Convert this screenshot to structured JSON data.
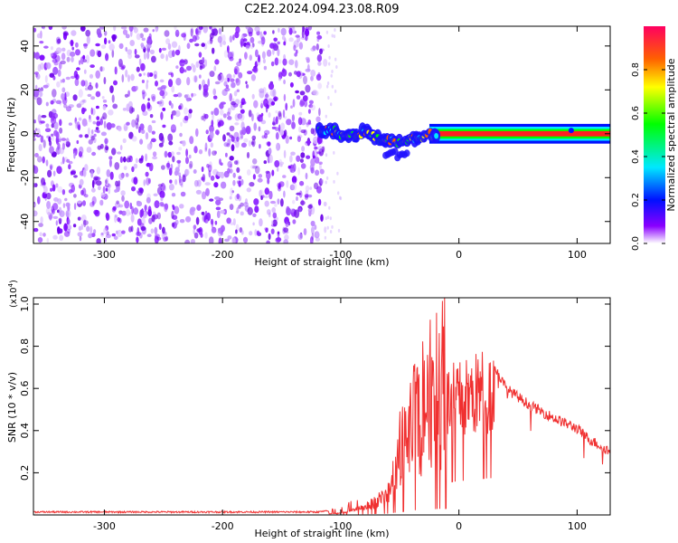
{
  "title": "C2E2.2024.094.23.08.R09",
  "colors": {
    "snr_line": "#f03030",
    "spectrum_dot": "#7a00ff",
    "frame": "#000000"
  },
  "chart_data": [
    {
      "type": "heatmap",
      "title": "C2E2.2024.094.23.08.R09",
      "xlabel": "Height of straight line (km)",
      "ylabel": "Frequency (Hz)",
      "xlim": [
        -360,
        128
      ],
      "ylim": [
        -50,
        49
      ],
      "x_ticks": [
        -300,
        -200,
        -100,
        0,
        100
      ],
      "y_ticks": [
        -40,
        -20,
        0,
        20,
        40
      ],
      "x_tick_labels": [
        "-300",
        "-200",
        "-100",
        "0",
        "100"
      ],
      "y_tick_labels": [
        "-40",
        "-20",
        "0",
        "20",
        "40"
      ],
      "noise_region_x": [
        -360,
        -113
      ],
      "frequency_trace": {
        "x": [
          -120,
          -110,
          -100,
          -90,
          -80,
          -70,
          -60,
          -50,
          -40,
          -30,
          -20,
          -10,
          0,
          10,
          40,
          70,
          100,
          128
        ],
        "y": [
          1,
          2,
          0,
          -1,
          1,
          -2,
          -3,
          -4,
          -2,
          -1,
          0,
          1,
          1,
          0,
          0,
          0,
          0,
          0
        ]
      },
      "grid": false
    },
    {
      "type": "colorbar",
      "label": "Normalized spectral amplitude",
      "range": [
        0,
        1
      ],
      "ticks": [
        0.0,
        0.2,
        0.4,
        0.6,
        0.8
      ],
      "tick_labels": [
        "0.0",
        "0.2",
        "0.4",
        "0.6",
        "0.8"
      ]
    },
    {
      "type": "line",
      "xlabel": "Height of straight line (km)",
      "ylabel": "SNR (10 * v/v)",
      "y_scale_label": "(x10",
      "y_scale_exp": "4",
      "y_scale_close": ")",
      "xlim": [
        -360,
        128
      ],
      "ylim": [
        0,
        1.03
      ],
      "x_ticks": [
        -300,
        -200,
        -100,
        0,
        100
      ],
      "y_ticks": [
        0.2,
        0.4,
        0.6,
        0.8,
        1.0
      ],
      "x_tick_labels": [
        "-300",
        "-200",
        "-100",
        "0",
        "100"
      ],
      "y_tick_labels": [
        "0.2",
        "0.4",
        "0.6",
        "0.8",
        "1.0"
      ],
      "envelope": {
        "x": [
          -360,
          -200,
          -120,
          -100,
          -80,
          -60,
          -50,
          -40,
          -30,
          -20,
          -10,
          0,
          10,
          20,
          30,
          40,
          60,
          80,
          100,
          110,
          128
        ],
        "y": [
          0.01,
          0.01,
          0.01,
          0.02,
          0.06,
          0.12,
          0.28,
          0.42,
          0.5,
          0.56,
          0.62,
          0.64,
          0.66,
          0.69,
          0.7,
          0.6,
          0.52,
          0.46,
          0.41,
          0.36,
          0.3
        ]
      },
      "grid": false
    }
  ]
}
